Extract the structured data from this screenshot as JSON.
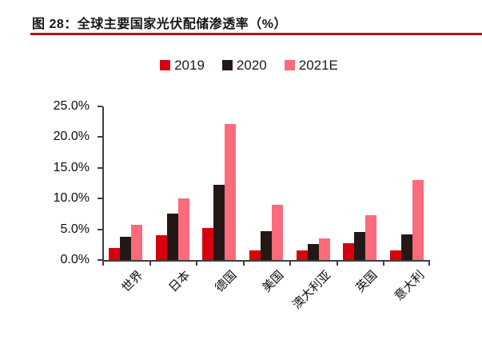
{
  "figure": {
    "title": "图 28：全球主要国家光伏配储渗透率（%）",
    "underline_color": "#b5161d",
    "axis_color": "#3f3f3f"
  },
  "chart_data": {
    "type": "bar",
    "title": "全球主要国家光伏配储渗透率（%）",
    "categories": [
      "世界",
      "日本",
      "德国",
      "美国",
      "澳大利亚",
      "英国",
      "意大利"
    ],
    "series": [
      {
        "name": "2019",
        "color": "#d7000f",
        "values": [
          2.0,
          4.0,
          5.2,
          1.5,
          1.6,
          2.7,
          1.6
        ]
      },
      {
        "name": "2020",
        "color": "#231815",
        "values": [
          3.8,
          7.5,
          12.3,
          4.7,
          2.6,
          4.6,
          4.2
        ]
      },
      {
        "name": "2021E",
        "color": "#fb6b7b",
        "values": [
          5.7,
          10.0,
          22.2,
          9.0,
          3.5,
          7.3,
          13.0
        ]
      }
    ],
    "xlabel": "",
    "ylabel": "",
    "ylim": [
      0,
      25
    ],
    "ytick_step": 5,
    "ytick_labels": [
      "0.0%",
      "5.0%",
      "10.0%",
      "15.0%",
      "20.0%",
      "25.0%"
    ],
    "legend_position": "top",
    "grid": false
  }
}
